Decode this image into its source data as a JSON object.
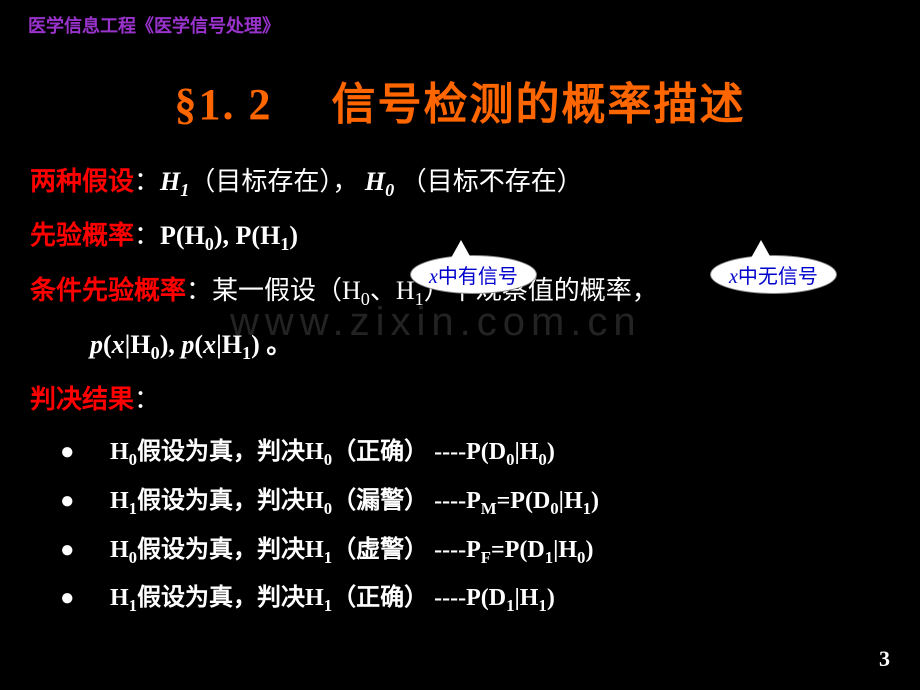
{
  "header": "医学信息工程《医学信号处理》",
  "title": "§1. 2　 信号检测的概率描述",
  "lines": {
    "l1_label": "两种假设",
    "l1_rest_a": "：",
    "l1_H1": "H",
    "l1_H1sub": "1",
    "l1_mid1": "（目标存在），",
    "l1_H0": " H",
    "l1_H0sub": "0",
    "l1_mid2": " （目标不存在）",
    "l2_label": "先验概率",
    "l2_rest": "：",
    "l2_formula": "P(H",
    "l2_s0": "0",
    "l2_mid": "), P(H",
    "l2_s1": "1",
    "l2_end": ")",
    "l3_label": "条件先验概率",
    "l3_rest_a": "：某一假设（H",
    "l3_s0": "0",
    "l3_rest_b": "、H",
    "l3_s1": "1",
    "l3_rest_c": "）下观察值的概率，",
    "l4_a": "p",
    "l4_b": "(",
    "l4_x1": "x",
    "l4_c": "|H",
    "l4_s0": "0",
    "l4_d": "), ",
    "l4_e": "p",
    "l4_f": "(",
    "l4_x2": "x",
    "l4_g": "|H",
    "l4_s1": "1",
    "l4_h": ") 。",
    "l5_label": "判决结果",
    "l5_rest": "："
  },
  "bullets": [
    {
      "pre": "H",
      "s1": "0",
      "mid": "假设为真，判决H",
      "s2": "0",
      "tail": "（正确） ----P(D",
      "s3": "0",
      "t2": "|H",
      "s4": "0",
      "t3": ")"
    },
    {
      "pre": "H",
      "s1": "1",
      "mid": "假设为真，判决H",
      "s2": "0",
      "tail": "（漏警） ----P",
      "tsub": "M",
      "eq": "=P(D",
      "s3": "0",
      "t2": "|H",
      "s4": "1",
      "t3": ")"
    },
    {
      "pre": "H",
      "s1": "0",
      "mid": "假设为真，判决H",
      "s2": "1",
      "tail": "（虚警） ----P",
      "tsub": "F",
      "eq": "=P(D",
      "s3": "1",
      "t2": "|H",
      "s4": "0",
      "t3": ")"
    },
    {
      "pre": "H",
      "s1": "1",
      "mid": "假设为真，判决H",
      "s2": "1",
      "tail": "（正确） ----P(D",
      "s3": "1",
      "t2": "|H",
      "s4": "1",
      "t3": ")"
    }
  ],
  "callout1_x": "x",
  "callout1_txt": "中有信号",
  "callout2_x": "x",
  "callout2_txt": "中无信号",
  "watermark": "www.zixin.com.cn",
  "pagenum": "3",
  "colors": {
    "bg": "#000000",
    "header": "#9933cc",
    "title": "#ff6600",
    "label": "#ff0000",
    "body": "#ffffff",
    "callout_text": "#0000cc",
    "callout_bg": "#ffffff"
  }
}
